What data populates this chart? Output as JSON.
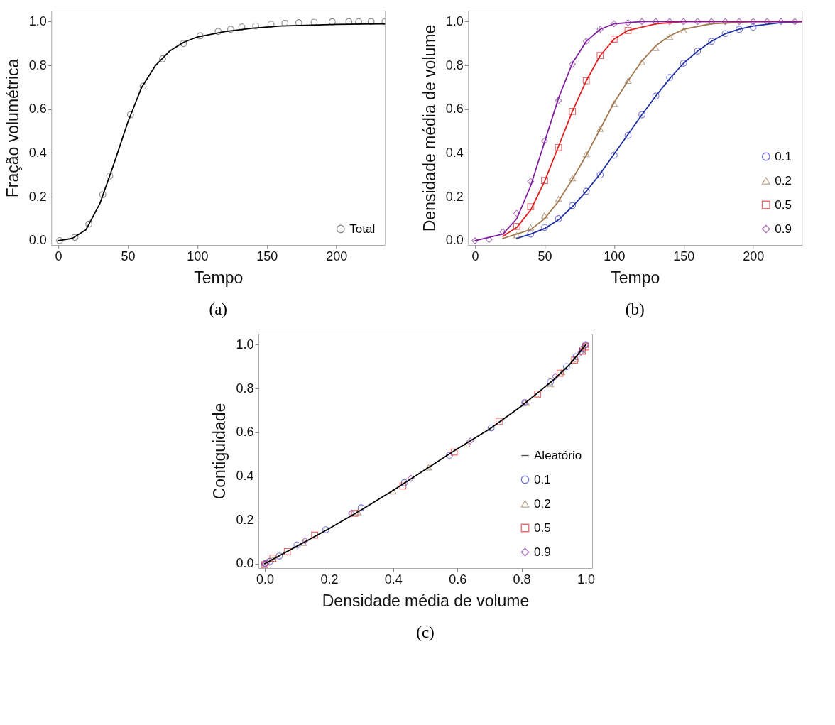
{
  "chart_data": [
    {
      "type": "scatter",
      "title": "(a)",
      "xlabel": "Tempo",
      "ylabel": "Fração volumétrica",
      "xlim": [
        -5,
        235
      ],
      "ylim": [
        -0.02,
        1.05
      ],
      "xticks": [
        0,
        50,
        100,
        150,
        200
      ],
      "yticks": [
        {
          "value": 0,
          "label": "0.0"
        },
        {
          "value": 0.2,
          "label": "0.2"
        },
        {
          "value": 0.4,
          "label": "0.4"
        },
        {
          "value": 0.6,
          "label": "0.6"
        },
        {
          "value": 0.8,
          "label": "0.8"
        },
        {
          "value": 1,
          "label": "1.0"
        }
      ],
      "legend": "bottom right",
      "series": [
        {
          "name": "Total",
          "type": "scatter",
          "marker": "circle",
          "color": "#555555",
          "x": [
            1,
            12,
            22,
            32,
            37,
            52,
            61,
            75,
            90,
            102,
            115,
            124,
            132,
            142,
            153,
            163,
            173,
            184,
            197,
            209,
            216,
            225,
            235
          ],
          "values": [
            0,
            0.015,
            0.075,
            0.21,
            0.295,
            0.575,
            0.705,
            0.83,
            0.9,
            0.935,
            0.955,
            0.965,
            0.975,
            0.98,
            0.988,
            0.993,
            0.995,
            0.997,
            0.999,
            1.0,
            1.0,
            1.0,
            1.0
          ]
        },
        {
          "type": "line",
          "color": "#000000",
          "x": [
            0,
            10,
            20,
            30,
            40,
            50,
            60,
            70,
            80,
            90,
            100,
            120,
            140,
            160,
            200,
            235
          ],
          "values": [
            0,
            0.01,
            0.05,
            0.17,
            0.35,
            0.54,
            0.7,
            0.8,
            0.865,
            0.905,
            0.93,
            0.955,
            0.97,
            0.98,
            0.987,
            0.99
          ]
        }
      ]
    },
    {
      "type": "scatter",
      "title": "(b)",
      "xlabel": "Tempo",
      "ylabel": "Densidade média de volume",
      "xlim": [
        -5,
        235
      ],
      "ylim": [
        -0.02,
        1.05
      ],
      "xticks": [
        0,
        50,
        100,
        150,
        200
      ],
      "yticks": [
        {
          "value": 0,
          "label": "0.0"
        },
        {
          "value": 0.2,
          "label": "0.2"
        },
        {
          "value": 0.4,
          "label": "0.4"
        },
        {
          "value": 0.6,
          "label": "0.6"
        },
        {
          "value": 0.8,
          "label": "0.8"
        },
        {
          "value": 1,
          "label": "1.0"
        }
      ],
      "legend": "bottom right",
      "series": [
        {
          "name": "0.1",
          "type": "scatter",
          "marker": "circle",
          "color": "#3a3ac8",
          "x": [
            40,
            50,
            60,
            70,
            80,
            90,
            100,
            110,
            120,
            130,
            140,
            150,
            160,
            170,
            180,
            190,
            200
          ],
          "values": [
            0.03,
            0.06,
            0.1,
            0.16,
            0.225,
            0.3,
            0.39,
            0.48,
            0.575,
            0.66,
            0.745,
            0.81,
            0.865,
            0.91,
            0.945,
            0.965,
            0.975
          ]
        },
        {
          "name": "0.2",
          "type": "scatter",
          "marker": "triangle",
          "color": "#a08060",
          "x": [
            30,
            40,
            50,
            60,
            70,
            80,
            90,
            100,
            110,
            120,
            130,
            140,
            150
          ],
          "values": [
            0.025,
            0.06,
            0.115,
            0.19,
            0.285,
            0.395,
            0.51,
            0.625,
            0.73,
            0.815,
            0.88,
            0.93,
            0.96
          ]
        },
        {
          "name": "0.5",
          "type": "scatter",
          "marker": "square",
          "color": "#e03030",
          "x": [
            30,
            40,
            50,
            60,
            70,
            80,
            90,
            100,
            110
          ],
          "values": [
            0.065,
            0.155,
            0.275,
            0.425,
            0.59,
            0.73,
            0.845,
            0.92,
            0.96
          ]
        },
        {
          "name": "0.9",
          "type": "scatter",
          "marker": "diamond",
          "color": "#8a3aa0",
          "x": [
            0,
            10,
            20,
            30,
            40,
            50,
            60,
            70,
            80,
            90,
            100,
            110,
            120,
            130,
            140,
            150,
            160,
            170,
            180,
            190,
            200,
            210,
            220,
            230
          ],
          "values": [
            0,
            0.005,
            0.04,
            0.125,
            0.27,
            0.455,
            0.64,
            0.805,
            0.91,
            0.965,
            0.99,
            0.995,
            1,
            1,
            1,
            1,
            1,
            1,
            1,
            1,
            1,
            1,
            1,
            1
          ]
        },
        {
          "type": "line",
          "color": "#2030a0",
          "x": [
            30,
            40,
            50,
            60,
            70,
            80,
            90,
            100,
            110,
            120,
            130,
            140,
            150,
            160,
            170,
            180,
            190,
            200,
            220,
            235
          ],
          "values": [
            0.01,
            0.03,
            0.055,
            0.095,
            0.155,
            0.225,
            0.305,
            0.395,
            0.485,
            0.575,
            0.66,
            0.74,
            0.81,
            0.865,
            0.91,
            0.945,
            0.965,
            0.98,
            0.995,
            1
          ]
        },
        {
          "type": "line",
          "color": "#a07850",
          "x": [
            20,
            40,
            50,
            60,
            70,
            80,
            90,
            100,
            110,
            120,
            130,
            140,
            150,
            170,
            200,
            235
          ],
          "values": [
            0.01,
            0.05,
            0.1,
            0.18,
            0.28,
            0.39,
            0.51,
            0.63,
            0.73,
            0.82,
            0.89,
            0.935,
            0.965,
            0.99,
            1,
            1
          ]
        },
        {
          "type": "line",
          "color": "#e02020",
          "x": [
            20,
            30,
            40,
            50,
            60,
            70,
            80,
            90,
            100,
            110,
            130,
            150,
            235
          ],
          "values": [
            0.02,
            0.06,
            0.14,
            0.27,
            0.43,
            0.59,
            0.73,
            0.845,
            0.92,
            0.96,
            0.99,
            1,
            1
          ]
        },
        {
          "type": "line",
          "color": "#8020a0",
          "x": [
            0,
            20,
            30,
            40,
            50,
            60,
            70,
            80,
            90,
            100,
            120,
            235
          ],
          "values": [
            0,
            0.03,
            0.1,
            0.25,
            0.45,
            0.65,
            0.81,
            0.91,
            0.965,
            0.99,
            1,
            1
          ]
        }
      ]
    },
    {
      "type": "scatter",
      "title": "(c)",
      "xlabel": "Densidade média de volume",
      "ylabel": "Contiguidade",
      "xlim": [
        -0.02,
        1.02
      ],
      "ylim": [
        -0.02,
        1.05
      ],
      "xticks": [
        {
          "value": 0,
          "label": "0.0"
        },
        {
          "value": 0.2,
          "label": "0.2"
        },
        {
          "value": 0.4,
          "label": "0.4"
        },
        {
          "value": 0.6,
          "label": "0.6"
        },
        {
          "value": 0.8,
          "label": "0.8"
        },
        {
          "value": 1,
          "label": "1.0"
        }
      ],
      "yticks": [
        {
          "value": 0,
          "label": "0.0"
        },
        {
          "value": 0.2,
          "label": "0.2"
        },
        {
          "value": 0.4,
          "label": "0.4"
        },
        {
          "value": 0.6,
          "label": "0.6"
        },
        {
          "value": 0.8,
          "label": "0.8"
        },
        {
          "value": 1,
          "label": "1.0"
        }
      ],
      "legend": "bottom right",
      "series": [
        {
          "name": "Aleatório",
          "type": "line",
          "color": "#000000",
          "x": [
            0,
            0.1,
            0.2,
            0.3,
            0.4,
            0.5,
            0.6,
            0.7,
            0.8,
            0.9,
            0.95,
            1
          ],
          "values": [
            0,
            0.08,
            0.16,
            0.245,
            0.335,
            0.43,
            0.525,
            0.615,
            0.72,
            0.84,
            0.91,
            1
          ]
        },
        {
          "name": "0.1",
          "type": "scatter",
          "marker": "circle",
          "color": "#3a3ac8",
          "x": [
            0,
            0.015,
            0.045,
            0.1,
            0.19,
            0.3,
            0.435,
            0.575,
            0.705,
            0.81,
            0.89,
            0.94,
            0.97,
            0.99,
            1
          ],
          "values": [
            0,
            0.01,
            0.035,
            0.085,
            0.155,
            0.255,
            0.37,
            0.495,
            0.62,
            0.735,
            0.83,
            0.9,
            0.945,
            0.98,
            1
          ]
        },
        {
          "name": "0.2",
          "type": "scatter",
          "marker": "triangle",
          "color": "#a08060",
          "x": [
            0.005,
            0.025,
            0.12,
            0.29,
            0.4,
            0.51,
            0.63,
            0.815,
            0.89,
            0.925,
            0.97,
            0.99,
            1
          ],
          "values": [
            0.005,
            0.02,
            0.095,
            0.235,
            0.33,
            0.44,
            0.545,
            0.735,
            0.82,
            0.875,
            0.935,
            0.97,
            1
          ]
        },
        {
          "name": "0.5",
          "type": "scatter",
          "marker": "square",
          "color": "#e03030",
          "x": [
            0,
            0.025,
            0.07,
            0.155,
            0.28,
            0.43,
            0.59,
            0.73,
            0.85,
            0.92,
            0.965,
            0.99,
            1
          ],
          "values": [
            -0.005,
            0.025,
            0.055,
            0.13,
            0.23,
            0.355,
            0.51,
            0.65,
            0.775,
            0.87,
            0.93,
            0.97,
            0.99
          ]
        },
        {
          "name": "0.9",
          "type": "scatter",
          "marker": "diamond",
          "color": "#8a3aa0",
          "x": [
            0,
            0.005,
            0.125,
            0.27,
            0.455,
            0.64,
            0.81,
            0.905,
            0.985,
            1
          ],
          "values": [
            0,
            0.005,
            0.105,
            0.23,
            0.39,
            0.56,
            0.735,
            0.855,
            0.965,
            1
          ]
        }
      ]
    }
  ]
}
